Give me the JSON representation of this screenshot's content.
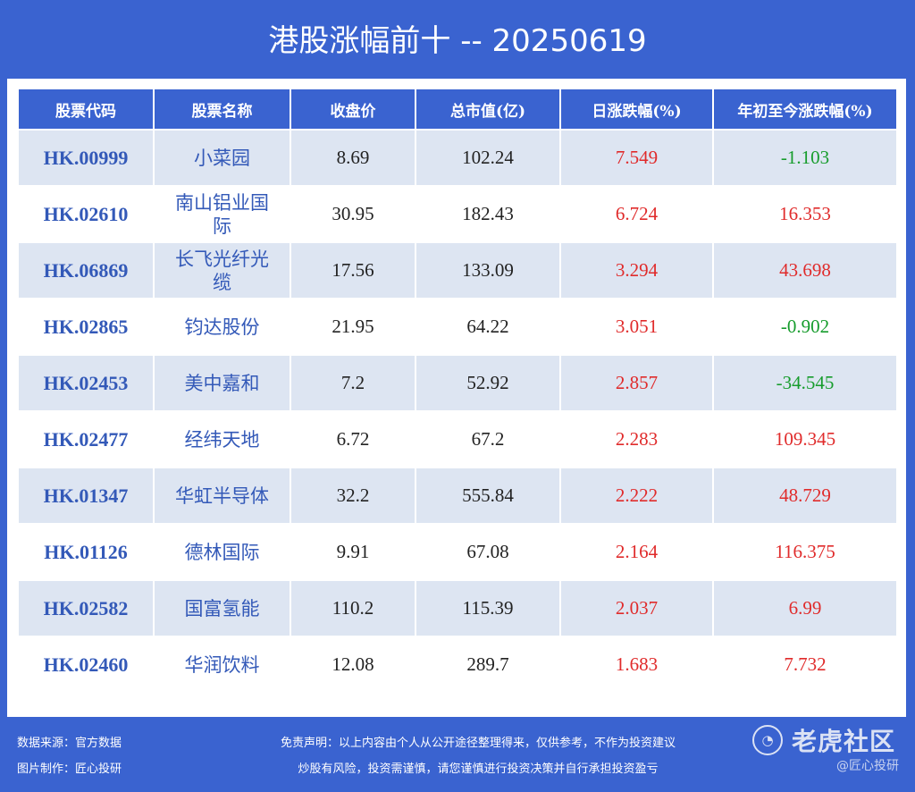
{
  "title": "港股涨幅前十 -- 20250619",
  "table": {
    "headers": [
      "股票代码",
      "股票名称",
      "收盘价",
      "总市值(亿)",
      "日涨跌幅(%)",
      "年初至今涨跌幅(%)"
    ],
    "rows": [
      {
        "code": "HK.00999",
        "name": "小菜园",
        "close": "8.69",
        "cap": "102.24",
        "day": "7.549",
        "ytd": "-1.103"
      },
      {
        "code": "HK.02610",
        "name": "南山铝业国际",
        "close": "30.95",
        "cap": "182.43",
        "day": "6.724",
        "ytd": "16.353"
      },
      {
        "code": "HK.06869",
        "name": "长飞光纤光缆",
        "close": "17.56",
        "cap": "133.09",
        "day": "3.294",
        "ytd": "43.698"
      },
      {
        "code": "HK.02865",
        "name": "钧达股份",
        "close": "21.95",
        "cap": "64.22",
        "day": "3.051",
        "ytd": "-0.902"
      },
      {
        "code": "HK.02453",
        "name": "美中嘉和",
        "close": "7.2",
        "cap": "52.92",
        "day": "2.857",
        "ytd": "-34.545"
      },
      {
        "code": "HK.02477",
        "name": "经纬天地",
        "close": "6.72",
        "cap": "67.2",
        "day": "2.283",
        "ytd": "109.345"
      },
      {
        "code": "HK.01347",
        "name": "华虹半导体",
        "close": "32.2",
        "cap": "555.84",
        "day": "2.222",
        "ytd": "48.729"
      },
      {
        "code": "HK.01126",
        "name": "德林国际",
        "close": "9.91",
        "cap": "67.08",
        "day": "2.164",
        "ytd": "116.375"
      },
      {
        "code": "HK.02582",
        "name": "国富氢能",
        "close": "110.2",
        "cap": "115.39",
        "day": "2.037",
        "ytd": "6.99"
      },
      {
        "code": "HK.02460",
        "name": "华润饮料",
        "close": "12.08",
        "cap": "289.7",
        "day": "1.683",
        "ytd": "7.732"
      }
    ]
  },
  "footer": {
    "source": "数据来源：官方数据",
    "maker": "图片制作：匠心投研",
    "disclaimer1": "免责声明：以上内容由个人从公开途径整理得来，仅供参考，不作为投资建议",
    "disclaimer2": "炒股有风险，投资需谨慎，请您谨慎进行投资决策并自行承担投资盈亏"
  },
  "watermark": {
    "logo_icon": "tiger-logo-icon",
    "logo_text": "老虎社区",
    "sub": "@匠心投研"
  },
  "colors": {
    "background": "#3a63d0",
    "header_bg": "#3a63d0",
    "stripe": "#dde5f2",
    "code_text": "#3359b8",
    "up": "#e02b2b",
    "down": "#169c2c"
  }
}
